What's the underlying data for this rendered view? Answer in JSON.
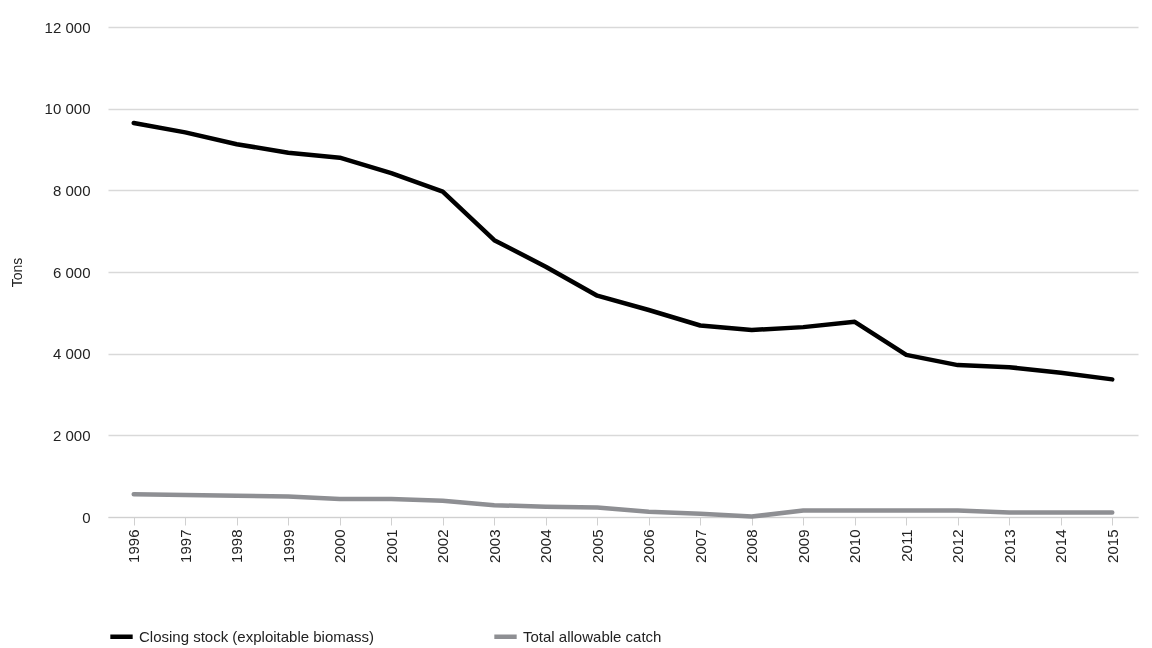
{
  "chart_data": {
    "type": "line",
    "ylabel": "Tons",
    "categories": [
      "1996",
      "1997",
      "1998",
      "1999",
      "2000",
      "2001",
      "2002",
      "2003",
      "2004",
      "2005",
      "2006",
      "2007",
      "2008",
      "2009",
      "2010",
      "2011",
      "2012",
      "2013",
      "2014",
      "2015"
    ],
    "series": [
      {
        "name": "Closing stock (exploitable biomass)",
        "color": "#000000",
        "values": [
          9650,
          9420,
          9130,
          8920,
          8800,
          8420,
          7970,
          6780,
          6130,
          5420,
          5070,
          4690,
          4580,
          4650,
          4780,
          3970,
          3720,
          3670,
          3530,
          3370
        ]
      },
      {
        "name": "Total allowable catch",
        "color": "#8e8f93",
        "values": [
          560,
          540,
          520,
          500,
          440,
          440,
          400,
          290,
          250,
          230,
          130,
          80,
          10,
          160,
          160,
          160,
          160,
          110,
          110,
          110
        ]
      }
    ],
    "ylim": [
      0,
      12000
    ],
    "yticks": [
      0,
      {
        "value": 2000,
        "label": "2 000"
      },
      {
        "value": 4000,
        "label": "4 000"
      },
      {
        "value": 6000,
        "label": "6 000"
      },
      {
        "value": 8000,
        "label": "8 000"
      },
      {
        "value": 10000,
        "label": "10 000"
      },
      {
        "value": 12000,
        "label": "12 000"
      }
    ],
    "grid": "y",
    "legend": "bottom",
    "marker": "none",
    "line_style": "solid"
  }
}
